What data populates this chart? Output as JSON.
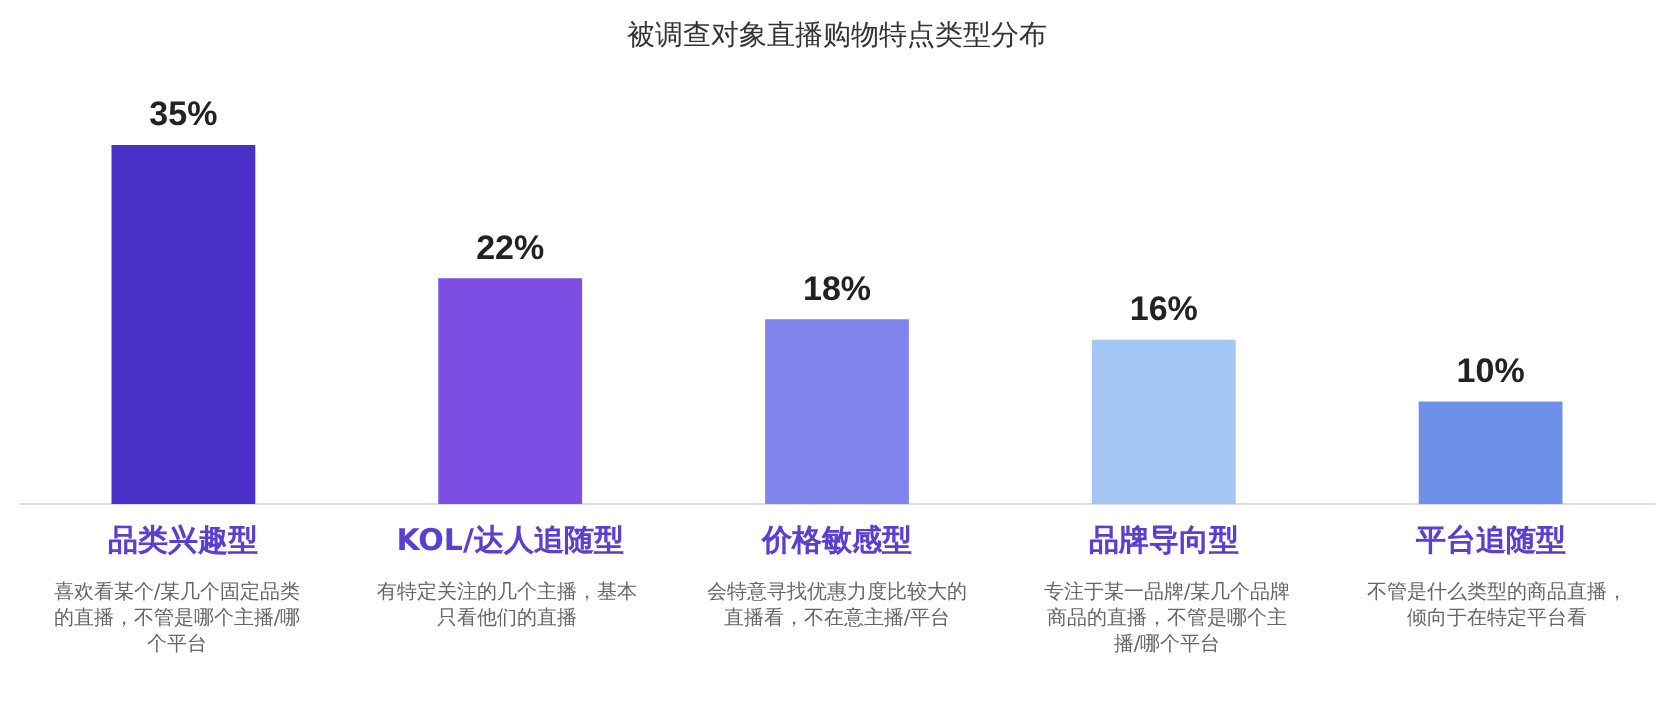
{
  "chart_data": {
    "type": "bar",
    "title": "被调查对象直播购物特点类型分布",
    "categories": [
      "品类兴趣型",
      "KOL/达人追随型",
      "价格敏感型",
      "品牌导向型",
      "平台追随型"
    ],
    "values": [
      35,
      22,
      18,
      16,
      10
    ],
    "colors": [
      "#4b2fc9",
      "#7c4ee3",
      "#7f85ea",
      "#a3c6f4",
      "#6f90ea"
    ],
    "value_labels": [
      "35%",
      "22%",
      "18%",
      "16%",
      "10%"
    ],
    "grid": false,
    "legend": false,
    "annotations": [
      "喜欢看某个/某几个固定品类的直播，不管是哪个主播/哪个平台",
      "有特定关注的几个主播，基本只看他们的直播",
      "会特意寻找优惠力度比较大的直播看，不在意主播/平台",
      "专注于某一品牌/某几个品牌商品的直播，不管是哪个主播/哪个平台",
      "不管是什么类型的商品直播，倾向于在特定平台看"
    ]
  }
}
